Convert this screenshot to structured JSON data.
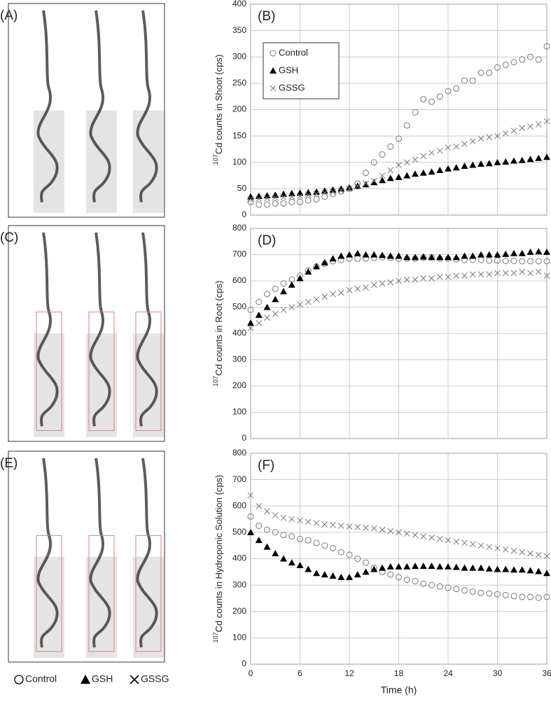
{
  "images": {
    "labels": [
      "(A)",
      "(C)",
      "(E)"
    ],
    "legend": [
      "Control",
      "GSH",
      "GSSG"
    ]
  },
  "chart_data": [
    {
      "type": "scatter",
      "panel": "(B)",
      "ylabel_sup": "107",
      "ylabel": "Cd  counts in Shoot (cps)",
      "show_xtick_labels": false,
      "xlim": [
        0,
        36
      ],
      "xticks": [
        0,
        6,
        12,
        18,
        24,
        30,
        36
      ],
      "ylim": [
        0,
        400
      ],
      "yticks": [
        0,
        50,
        100,
        150,
        200,
        250,
        300,
        350,
        400
      ],
      "grid": true,
      "legend": "upper-left",
      "x": [
        0,
        1,
        2,
        3,
        4,
        5,
        6,
        7,
        8,
        9,
        10,
        11,
        12,
        13,
        14,
        15,
        16,
        17,
        18,
        19,
        20,
        21,
        22,
        23,
        24,
        25,
        26,
        27,
        28,
        29,
        30,
        31,
        32,
        33,
        34,
        35,
        36
      ],
      "series": [
        {
          "name": "Control",
          "marker": "circle",
          "color": "#777777",
          "values": [
            25,
            20,
            20,
            22,
            22,
            25,
            25,
            28,
            30,
            35,
            40,
            45,
            50,
            60,
            80,
            100,
            115,
            130,
            145,
            170,
            195,
            220,
            215,
            225,
            235,
            240,
            255,
            255,
            270,
            270,
            280,
            285,
            290,
            295,
            300,
            295,
            320
          ]
        },
        {
          "name": "GSH",
          "marker": "triangle",
          "color": "#000000",
          "values": [
            35,
            36,
            37,
            38,
            40,
            41,
            42,
            43,
            44,
            46,
            48,
            50,
            52,
            55,
            58,
            62,
            66,
            70,
            72,
            75,
            78,
            80,
            82,
            85,
            88,
            90,
            93,
            95,
            97,
            98,
            100,
            101,
            103,
            104,
            106,
            108,
            110
          ]
        },
        {
          "name": "GSSG",
          "marker": "x",
          "color": "#777777",
          "values": [
            30,
            31,
            32,
            33,
            34,
            35,
            36,
            38,
            40,
            42,
            44,
            47,
            50,
            55,
            60,
            65,
            75,
            85,
            95,
            100,
            105,
            112,
            118,
            122,
            128,
            130,
            135,
            140,
            145,
            148,
            150,
            155,
            160,
            165,
            168,
            172,
            178
          ]
        }
      ]
    },
    {
      "type": "scatter",
      "panel": "(D)",
      "ylabel_sup": "107",
      "ylabel": "Cd  counts in Root (cps)",
      "show_xtick_labels": false,
      "xlim": [
        0,
        36
      ],
      "xticks": [
        0,
        6,
        12,
        18,
        24,
        30,
        36
      ],
      "ylim": [
        0,
        800
      ],
      "yticks": [
        0,
        100,
        200,
        300,
        400,
        500,
        600,
        700,
        800
      ],
      "grid": true,
      "x": [
        0,
        1,
        2,
        3,
        4,
        5,
        6,
        7,
        8,
        9,
        10,
        11,
        12,
        13,
        14,
        15,
        16,
        17,
        18,
        19,
        20,
        21,
        22,
        23,
        24,
        25,
        26,
        27,
        28,
        29,
        30,
        31,
        32,
        33,
        34,
        35,
        36
      ],
      "series": [
        {
          "name": "Control",
          "marker": "circle",
          "color": "#777777",
          "values": [
            490,
            520,
            550,
            570,
            590,
            605,
            620,
            640,
            655,
            665,
            675,
            680,
            685,
            685,
            685,
            688,
            690,
            688,
            685,
            685,
            685,
            688,
            690,
            685,
            685,
            682,
            680,
            680,
            680,
            678,
            678,
            676,
            676,
            675,
            675,
            675,
            675
          ]
        },
        {
          "name": "GSH",
          "marker": "triangle",
          "color": "#000000",
          "values": [
            440,
            470,
            500,
            530,
            560,
            585,
            610,
            635,
            655,
            670,
            685,
            695,
            700,
            705,
            700,
            700,
            698,
            695,
            695,
            690,
            690,
            692,
            690,
            690,
            690,
            690,
            695,
            695,
            700,
            700,
            700,
            702,
            705,
            705,
            710,
            712,
            710
          ]
        },
        {
          "name": "GSSG",
          "marker": "x",
          "color": "#777777",
          "values": [
            420,
            440,
            460,
            475,
            490,
            500,
            510,
            520,
            530,
            540,
            550,
            555,
            565,
            570,
            575,
            585,
            590,
            595,
            600,
            605,
            605,
            610,
            610,
            615,
            615,
            620,
            620,
            625,
            625,
            625,
            630,
            630,
            630,
            635,
            630,
            635,
            620
          ]
        }
      ]
    },
    {
      "type": "scatter",
      "panel": "(F)",
      "ylabel_sup": "107",
      "ylabel": "Cd  counts in Hydroponic Solution (cps)",
      "xlabel": "Time (h)",
      "show_xtick_labels": true,
      "xlim": [
        0,
        36
      ],
      "xticks": [
        0,
        6,
        12,
        18,
        24,
        30,
        36
      ],
      "ylim": [
        0,
        800
      ],
      "yticks": [
        0,
        100,
        200,
        300,
        400,
        500,
        600,
        700,
        800
      ],
      "grid": true,
      "x": [
        0,
        1,
        2,
        3,
        4,
        5,
        6,
        7,
        8,
        9,
        10,
        11,
        12,
        13,
        14,
        15,
        16,
        17,
        18,
        19,
        20,
        21,
        22,
        23,
        24,
        25,
        26,
        27,
        28,
        29,
        30,
        31,
        32,
        33,
        34,
        35,
        36
      ],
      "series": [
        {
          "name": "Control",
          "marker": "circle",
          "color": "#777777",
          "values": [
            560,
            525,
            510,
            500,
            490,
            485,
            475,
            470,
            460,
            450,
            440,
            425,
            415,
            400,
            385,
            365,
            350,
            340,
            330,
            320,
            315,
            305,
            300,
            295,
            290,
            285,
            280,
            275,
            270,
            268,
            265,
            262,
            258,
            255,
            255,
            252,
            255
          ]
        },
        {
          "name": "GSH",
          "marker": "triangle",
          "color": "#000000",
          "values": [
            500,
            470,
            445,
            420,
            400,
            385,
            375,
            360,
            345,
            340,
            335,
            330,
            330,
            340,
            350,
            360,
            365,
            370,
            370,
            370,
            372,
            372,
            372,
            370,
            370,
            368,
            365,
            365,
            365,
            362,
            360,
            360,
            358,
            358,
            355,
            352,
            345
          ]
        },
        {
          "name": "GSSG",
          "marker": "x",
          "color": "#777777",
          "values": [
            640,
            600,
            580,
            565,
            555,
            550,
            545,
            540,
            535,
            530,
            528,
            525,
            522,
            520,
            518,
            515,
            510,
            505,
            500,
            495,
            490,
            485,
            480,
            475,
            470,
            465,
            460,
            455,
            450,
            445,
            440,
            435,
            430,
            425,
            420,
            415,
            410
          ]
        }
      ]
    }
  ]
}
